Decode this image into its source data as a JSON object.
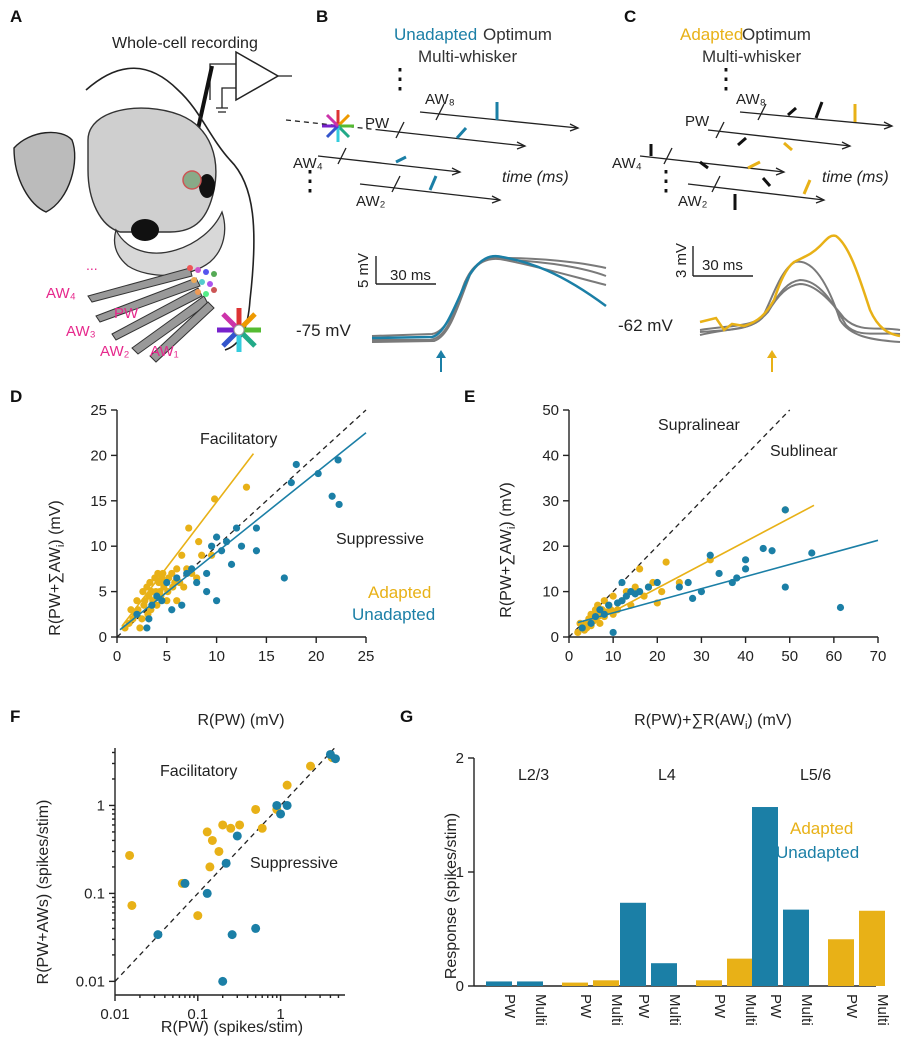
{
  "colors": {
    "adapted": "#E8B117",
    "unadapted": "#1B7FA6",
    "control": "#7a7a7a",
    "label_magenta": "#E6288C"
  },
  "panels": {
    "A": {
      "letter": "A",
      "title": "Whole-cell recording",
      "whisker_labels": [
        "AW₄",
        "PW",
        "AW₃",
        "AW₂",
        "AW₁"
      ],
      "dots": "..."
    },
    "B": {
      "letter": "B",
      "title_colored": "Unadapted",
      "title_rest": " Optimum",
      "subtitle": "Multi-whisker",
      "whiskers": [
        "AW₈",
        "PW",
        "AW₄",
        "AW₂"
      ],
      "time_label": "time (ms)",
      "scale_v": "5 mV",
      "scale_t": "30 ms",
      "vm": "-75 mV"
    },
    "C": {
      "letter": "C",
      "title_colored": "Adapted",
      "title_rest": " Optimum",
      "subtitle": "Multi-whisker",
      "whiskers": [
        "AW₈",
        "PW",
        "AW₄",
        "AW₂"
      ],
      "time_label": "time (ms)",
      "scale_v": "3 mV",
      "scale_t": "30 ms",
      "vm": "-62 mV"
    },
    "D": {
      "letter": "D",
      "ylabel_pre": "R(PW+∑AW",
      "ylabel_sub": "i",
      "ylabel_post": ") (mV)",
      "xlabel": "R(PW) (mV)",
      "note1": "Facilitatory",
      "note2": "Suppressive",
      "legend": [
        "Adapted",
        "Unadapted"
      ]
    },
    "E": {
      "letter": "E",
      "ylabel_pre": "R(PW+∑AW",
      "ylabel_sub": "i",
      "ylabel_post": ") (mV)",
      "xlabel_pre": "R(PW)+∑R(AW",
      "xlabel_sub": "i",
      "xlabel_post": ") (mV)",
      "note1": "Supralinear",
      "note2": "Sublinear"
    },
    "F": {
      "letter": "F",
      "ylabel": "R(PW+AWs) (spikes/stim)",
      "xlabel": "R(PW) (spikes/stim)",
      "note1": "Facilitatory",
      "note2": "Suppressive"
    },
    "G": {
      "letter": "G",
      "ylabel": "Response (spikes/stim)",
      "groups": [
        "L2/3",
        "L4",
        "L5/6"
      ],
      "legend": [
        "Adapted",
        "Unadapted"
      ]
    }
  },
  "chart_data": [
    {
      "panel": "D",
      "type": "scatter",
      "xlabel": "R(PW) (mV)",
      "ylabel": "R(PW+∑AWi) (mV)",
      "xlim": [
        0,
        25
      ],
      "ylim": [
        0,
        25
      ],
      "xticks": [
        0,
        5,
        10,
        15,
        20,
        25
      ],
      "yticks": [
        0,
        5,
        10,
        15,
        20,
        25
      ],
      "identity_line": true,
      "series": [
        {
          "name": "Adapted",
          "color": "#E8B117",
          "fit": [
            [
              0.5,
              1.2
            ],
            [
              13.7,
              20.2
            ]
          ],
          "points": [
            [
              0.8,
              1
            ],
            [
              1.2,
              1.5
            ],
            [
              1.4,
              3
            ],
            [
              1.6,
              2
            ],
            [
              1.8,
              2.5
            ],
            [
              2,
              4
            ],
            [
              2.1,
              3
            ],
            [
              2.3,
              1
            ],
            [
              2.5,
              2
            ],
            [
              2.6,
              5
            ],
            [
              2.7,
              3.5
            ],
            [
              2.8,
              4
            ],
            [
              3,
              5.5
            ],
            [
              3.1,
              2.5
            ],
            [
              3.2,
              4.5
            ],
            [
              3.3,
              6
            ],
            [
              3.4,
              3
            ],
            [
              3.5,
              5
            ],
            [
              3.6,
              4
            ],
            [
              3.8,
              6.5
            ],
            [
              3.9,
              5
            ],
            [
              4,
              3.5
            ],
            [
              4.1,
              7
            ],
            [
              4.2,
              6
            ],
            [
              4.3,
              5
            ],
            [
              4.4,
              4.5
            ],
            [
              4.5,
              6.5
            ],
            [
              4.6,
              7
            ],
            [
              4.7,
              5.5
            ],
            [
              4.8,
              6
            ],
            [
              5,
              4
            ],
            [
              5.1,
              5
            ],
            [
              5.2,
              6.5
            ],
            [
              5.5,
              7
            ],
            [
              5.6,
              5.5
            ],
            [
              5.8,
              6
            ],
            [
              6,
              4
            ],
            [
              6,
              7.5
            ],
            [
              6.3,
              6
            ],
            [
              6.5,
              9
            ],
            [
              6.7,
              5.5
            ],
            [
              7,
              7.5
            ],
            [
              7.2,
              12
            ],
            [
              7.5,
              7
            ],
            [
              8,
              6.5
            ],
            [
              8.2,
              10.5
            ],
            [
              8.5,
              9
            ],
            [
              9.5,
              9
            ],
            [
              9.8,
              15.2
            ],
            [
              13,
              16.5
            ]
          ]
        },
        {
          "name": "Unadapted",
          "color": "#1B7FA6",
          "fit": [
            [
              0.3,
              0.8
            ],
            [
              25,
              22.5
            ]
          ],
          "points": [
            [
              2,
              2.5
            ],
            [
              3,
              1
            ],
            [
              3.2,
              2
            ],
            [
              3.5,
              3.5
            ],
            [
              4,
              4.5
            ],
            [
              4.5,
              4
            ],
            [
              5,
              6
            ],
            [
              5.5,
              3
            ],
            [
              6,
              6.5
            ],
            [
              6.5,
              3.5
            ],
            [
              7,
              7
            ],
            [
              7.5,
              7.5
            ],
            [
              8,
              6
            ],
            [
              9,
              7
            ],
            [
              9,
              5
            ],
            [
              9.5,
              10
            ],
            [
              10,
              11
            ],
            [
              10,
              4
            ],
            [
              10.5,
              9.5
            ],
            [
              11,
              10.5
            ],
            [
              11.5,
              8
            ],
            [
              12,
              12
            ],
            [
              12.5,
              10
            ],
            [
              14,
              12
            ],
            [
              14,
              9.5
            ],
            [
              16.8,
              6.5
            ],
            [
              17.5,
              17
            ],
            [
              18,
              19
            ],
            [
              20.2,
              18
            ],
            [
              21.6,
              15.5
            ],
            [
              22.2,
              19.5
            ],
            [
              22.3,
              14.6
            ]
          ]
        }
      ]
    },
    {
      "panel": "E",
      "type": "scatter",
      "xlabel": "R(PW)+∑R(AWi) (mV)",
      "ylabel": "R(PW+∑AWi) (mV)",
      "xlim": [
        0,
        70
      ],
      "ylim": [
        0,
        50
      ],
      "xticks": [
        0,
        10,
        20,
        30,
        40,
        50,
        60,
        70
      ],
      "yticks": [
        0,
        10,
        20,
        30,
        40,
        50
      ],
      "identity_line": true,
      "series": [
        {
          "name": "Adapted",
          "color": "#E8B117",
          "fit": [
            [
              2,
              1.5
            ],
            [
              55.5,
              29
            ]
          ],
          "points": [
            [
              2,
              1
            ],
            [
              2.5,
              3
            ],
            [
              3,
              2
            ],
            [
              3.5,
              1.5
            ],
            [
              4,
              3
            ],
            [
              4,
              2
            ],
            [
              4.5,
              4
            ],
            [
              5,
              2.5
            ],
            [
              5,
              5
            ],
            [
              5.5,
              3.5
            ],
            [
              6,
              6
            ],
            [
              6,
              4
            ],
            [
              6.5,
              7
            ],
            [
              7,
              5
            ],
            [
              7,
              3
            ],
            [
              7.5,
              6
            ],
            [
              8,
              8
            ],
            [
              8,
              4.5
            ],
            [
              8.5,
              5.5
            ],
            [
              9,
              7
            ],
            [
              9.5,
              6
            ],
            [
              10,
              9
            ],
            [
              10,
              5
            ],
            [
              11,
              6
            ],
            [
              12,
              8
            ],
            [
              13,
              10
            ],
            [
              14,
              7
            ],
            [
              15,
              11
            ],
            [
              16,
              15
            ],
            [
              17,
              9
            ],
            [
              18,
              11
            ],
            [
              19,
              12
            ],
            [
              20,
              7.5
            ],
            [
              21,
              10
            ],
            [
              22,
              16.5
            ],
            [
              25,
              12
            ],
            [
              32,
              17
            ],
            [
              49,
              28
            ]
          ]
        },
        {
          "name": "Unadapted",
          "color": "#1B7FA6",
          "fit": [
            [
              2,
              3.2
            ],
            [
              70,
              21.3
            ]
          ],
          "points": [
            [
              3,
              2
            ],
            [
              5,
              3
            ],
            [
              6,
              4.5
            ],
            [
              7,
              6
            ],
            [
              8,
              5
            ],
            [
              9,
              7
            ],
            [
              10,
              1
            ],
            [
              11,
              7.5
            ],
            [
              12,
              12
            ],
            [
              12,
              8
            ],
            [
              13,
              9
            ],
            [
              14,
              10
            ],
            [
              15,
              9.5
            ],
            [
              16,
              10
            ],
            [
              18,
              11
            ],
            [
              20,
              12
            ],
            [
              25,
              11
            ],
            [
              27,
              12
            ],
            [
              28,
              8.5
            ],
            [
              30,
              10
            ],
            [
              32,
              18
            ],
            [
              34,
              14
            ],
            [
              37,
              12
            ],
            [
              38,
              13
            ],
            [
              40,
              15
            ],
            [
              40,
              17
            ],
            [
              44,
              19.5
            ],
            [
              46,
              19
            ],
            [
              49,
              11
            ],
            [
              49,
              28
            ],
            [
              55,
              18.5
            ],
            [
              61.5,
              6.5
            ]
          ]
        }
      ]
    },
    {
      "panel": "F",
      "type": "scatter",
      "log_scale": true,
      "xlabel": "R(PW) (spikes/stim)",
      "ylabel": "R(PW+AWs) (spikes/stim)",
      "xlim": [
        0.01,
        6
      ],
      "ylim": [
        0.007,
        4.5
      ],
      "xticks": [
        0.01,
        0.1,
        1
      ],
      "yticks": [
        0.01,
        0.1,
        1
      ],
      "identity_line": true,
      "series": [
        {
          "name": "Adapted",
          "color": "#E8B117",
          "points": [
            [
              0.015,
              0.27
            ],
            [
              0.016,
              0.073
            ],
            [
              0.065,
              0.13
            ],
            [
              0.1,
              0.056
            ],
            [
              0.13,
              0.5
            ],
            [
              0.14,
              0.2
            ],
            [
              0.15,
              0.4
            ],
            [
              0.18,
              0.3
            ],
            [
              0.2,
              0.6
            ],
            [
              0.25,
              0.55
            ],
            [
              0.32,
              0.6
            ],
            [
              0.5,
              0.9
            ],
            [
              0.6,
              0.55
            ],
            [
              0.9,
              0.9
            ],
            [
              1.2,
              1.7
            ],
            [
              2.3,
              2.8
            ],
            [
              4.2,
              3.5
            ]
          ]
        },
        {
          "name": "Unadapted",
          "color": "#1B7FA6",
          "points": [
            [
              0.033,
              0.034
            ],
            [
              0.07,
              0.13
            ],
            [
              0.13,
              0.1
            ],
            [
              0.2,
              0.01
            ],
            [
              0.22,
              0.22
            ],
            [
              0.26,
              0.034
            ],
            [
              0.3,
              0.45
            ],
            [
              0.5,
              0.04
            ],
            [
              0.9,
              1.0
            ],
            [
              1.0,
              0.8
            ],
            [
              1.2,
              1.0
            ],
            [
              4.0,
              3.8
            ],
            [
              4.6,
              3.4
            ]
          ]
        }
      ]
    },
    {
      "panel": "G",
      "type": "bar",
      "ylabel": "Response (spikes/stim)",
      "ylim": [
        0,
        2
      ],
      "yticks": [
        0,
        1,
        2
      ],
      "groups": [
        "L2/3",
        "L4",
        "L5/6"
      ],
      "categories": [
        "PW",
        "Multi",
        "PW",
        "Multi"
      ],
      "series": [
        {
          "name": "Unadapted",
          "color": "#1B7FA6",
          "values_by_group": [
            [
              0.04,
              0.04
            ],
            [
              0.73,
              0.2
            ],
            [
              1.57,
              0.67
            ]
          ]
        },
        {
          "name": "Adapted",
          "color": "#E8B117",
          "values_by_group": [
            [
              0.03,
              0.05
            ],
            [
              0.05,
              0.24
            ],
            [
              0.41,
              0.66
            ]
          ]
        }
      ]
    }
  ]
}
